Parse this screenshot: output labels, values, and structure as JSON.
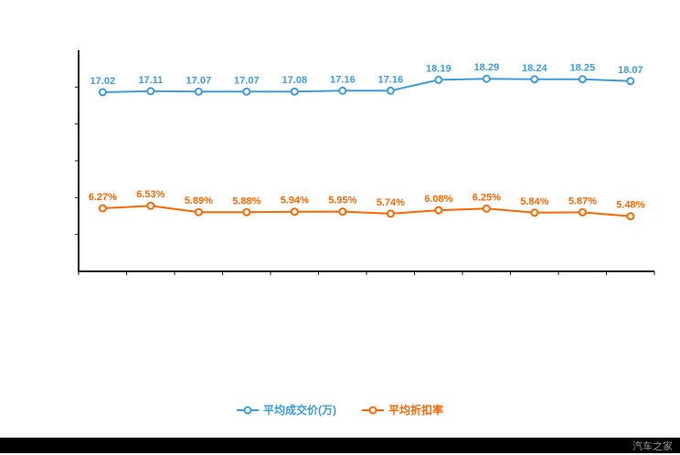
{
  "watermark": "汽车之家",
  "chart_data": {
    "type": "line",
    "title": "",
    "grid": false,
    "legend_position": "bottom",
    "axis_color": "#1a1a1a",
    "background": "#ffffff",
    "series": [
      {
        "name": "平均成交价(万)",
        "color": "#3e9bdc",
        "axis_max": 21,
        "values": [
          17.02,
          17.11,
          17.07,
          17.07,
          17.08,
          17.16,
          17.16,
          18.19,
          18.29,
          18.24,
          18.25,
          18.07
        ],
        "labels": [
          "17.02",
          "17.11",
          "17.07",
          "17.07",
          "17.08",
          "17.16",
          "17.16",
          "18.19",
          "18.29",
          "18.24",
          "18.25",
          "18.07"
        ]
      },
      {
        "name": "平均折扣率",
        "color": "#ff6600",
        "axis_max": 22,
        "values": [
          6.27,
          6.53,
          5.89,
          5.88,
          5.94,
          5.95,
          5.74,
          6.08,
          6.25,
          5.84,
          5.87,
          5.48
        ],
        "labels": [
          "6.27%",
          "6.53%",
          "5.89%",
          "5.88%",
          "5.94%",
          "5.95%",
          "5.74%",
          "6.08%",
          "6.25%",
          "5.84%",
          "5.87%",
          "5.48%"
        ]
      }
    ]
  }
}
